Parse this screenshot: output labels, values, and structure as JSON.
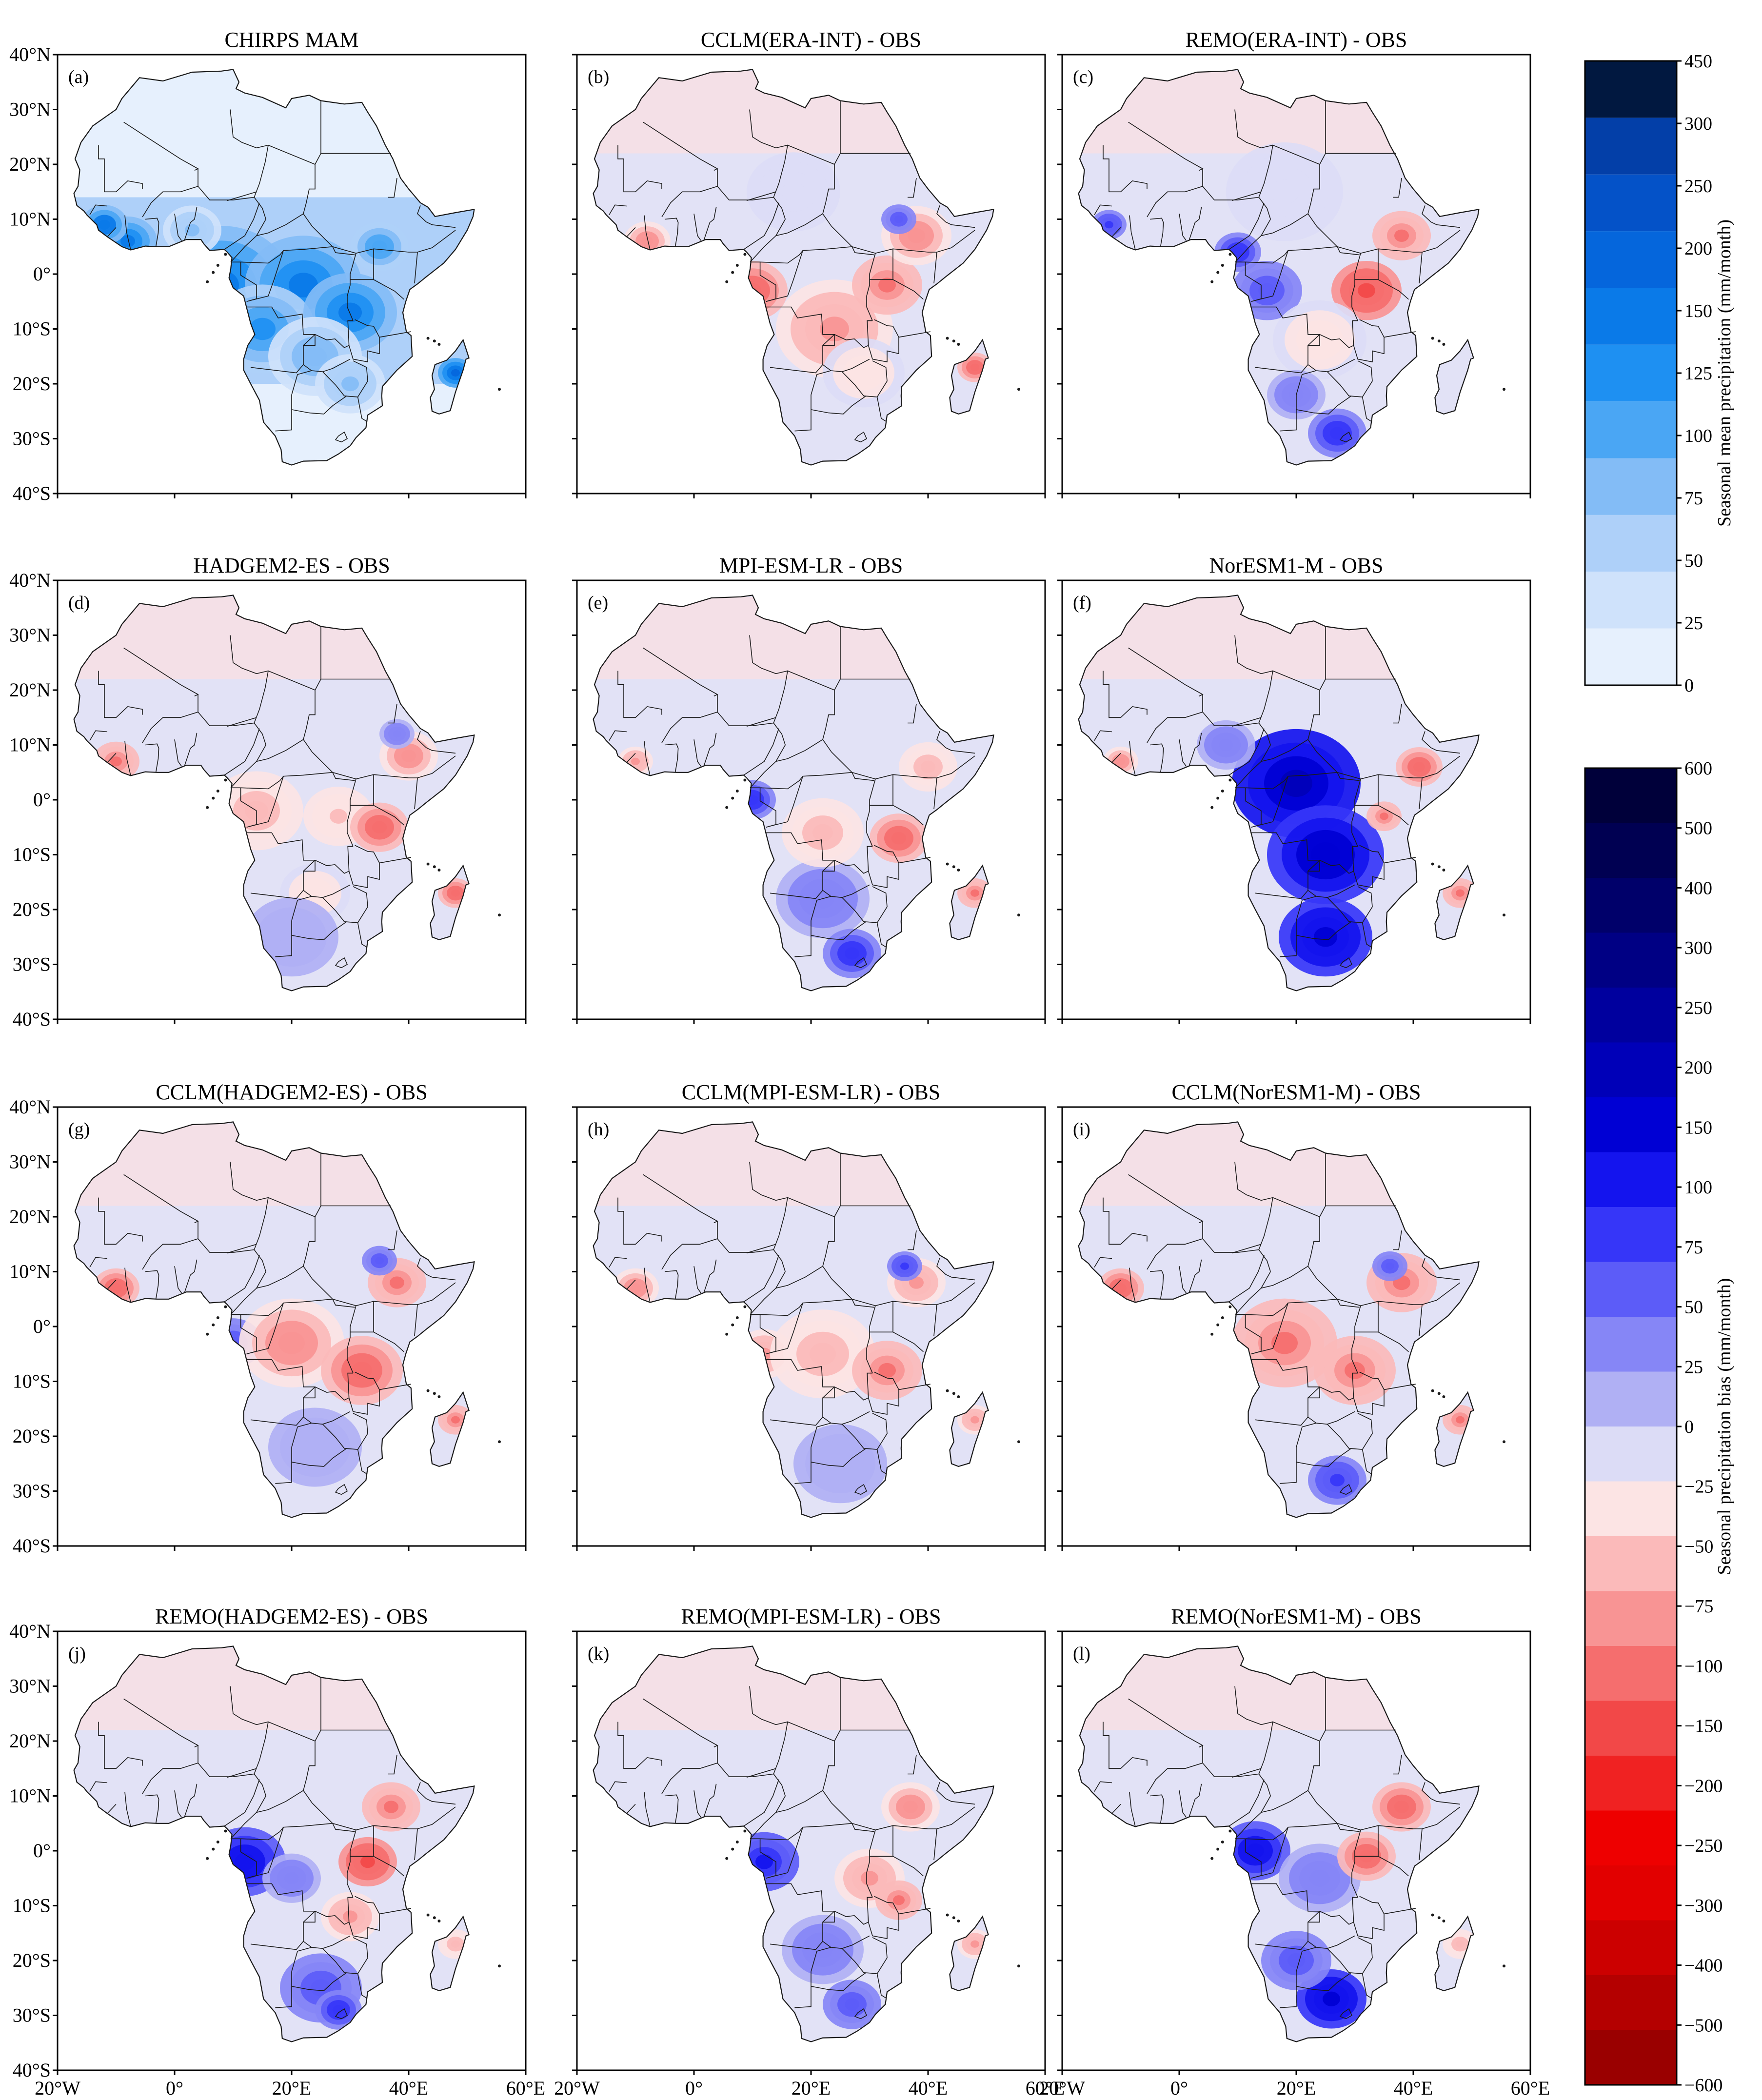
{
  "chart_data": [
    {
      "type": "map",
      "panel": "a",
      "title": "CHIRPS  MAM",
      "mode": "mean"
    },
    {
      "type": "map",
      "panel": "b",
      "title": "CCLM(ERA-INT) - OBS",
      "mode": "bias"
    },
    {
      "type": "map",
      "panel": "c",
      "title": "REMO(ERA-INT) - OBS",
      "mode": "bias"
    },
    {
      "type": "map",
      "panel": "d",
      "title": "HADGEM2-ES - OBS",
      "mode": "bias"
    },
    {
      "type": "map",
      "panel": "e",
      "title": "MPI-ESM-LR - OBS",
      "mode": "bias"
    },
    {
      "type": "map",
      "panel": "f",
      "title": "NorESM1-M - OBS",
      "mode": "bias"
    },
    {
      "type": "map",
      "panel": "g",
      "title": "CCLM(HADGEM2-ES) - OBS",
      "mode": "bias"
    },
    {
      "type": "map",
      "panel": "h",
      "title": "CCLM(MPI-ESM-LR) - OBS",
      "mode": "bias"
    },
    {
      "type": "map",
      "panel": "i",
      "title": "CCLM(NorESM1-M) - OBS",
      "mode": "bias"
    },
    {
      "type": "map",
      "panel": "j",
      "title": "REMO(HADGEM2-ES) - OBS",
      "mode": "bias"
    },
    {
      "type": "map",
      "panel": "k",
      "title": "REMO(MPI-ESM-LR) - OBS",
      "mode": "bias"
    },
    {
      "type": "map",
      "panel": "l",
      "title": "REMO(NorESM1-M) - OBS",
      "mode": "bias"
    }
  ],
  "axes": {
    "lat_ticks": [
      "40°N",
      "30°N",
      "20°N",
      "10°N",
      "0°",
      "10°S",
      "20°S",
      "30°S",
      "40°S"
    ],
    "lon_ticks": [
      "20°W",
      "0°",
      "20°E",
      "40°E",
      "60°E"
    ],
    "lon_range": [
      -20,
      60
    ],
    "lat_range": [
      -40,
      40
    ]
  },
  "colorbar_mean": {
    "label": "Seasonal mean precipitation (mm/month)",
    "levels": [
      "0",
      "25",
      "50",
      "75",
      "100",
      "125",
      "150",
      "200",
      "250",
      "300",
      "450"
    ],
    "colors": [
      "#e6f0fd",
      "#cfe2fb",
      "#aed0f9",
      "#83bcf6",
      "#4aa6f4",
      "#1e90f2",
      "#0a7ae8",
      "#0566dc",
      "#0452c8",
      "#033fa8",
      "#011840"
    ]
  },
  "colorbar_bias": {
    "label": "Seasonal precipitation bias (mm/month)",
    "levels": [
      "600",
      "500",
      "400",
      "300",
      "250",
      "200",
      "150",
      "100",
      "75",
      "50",
      "25",
      "0",
      "−25",
      "−50",
      "−75",
      "−100",
      "−150",
      "−200",
      "−250",
      "−300",
      "−400",
      "−500",
      "−600"
    ],
    "colors": [
      "#00003a",
      "#000052",
      "#00006a",
      "#000084",
      "#00009e",
      "#0000b8",
      "#0000d4",
      "#1414ee",
      "#3636f8",
      "#5c5cf8",
      "#8686f6",
      "#b0b0f4",
      "#dcdcf6",
      "#fce4e4",
      "#fbbaba",
      "#f89494",
      "#f56e6e",
      "#f24848",
      "#f02222",
      "#ee0000",
      "#e20000",
      "#cc0000",
      "#b40000",
      "#9a0000"
    ]
  }
}
